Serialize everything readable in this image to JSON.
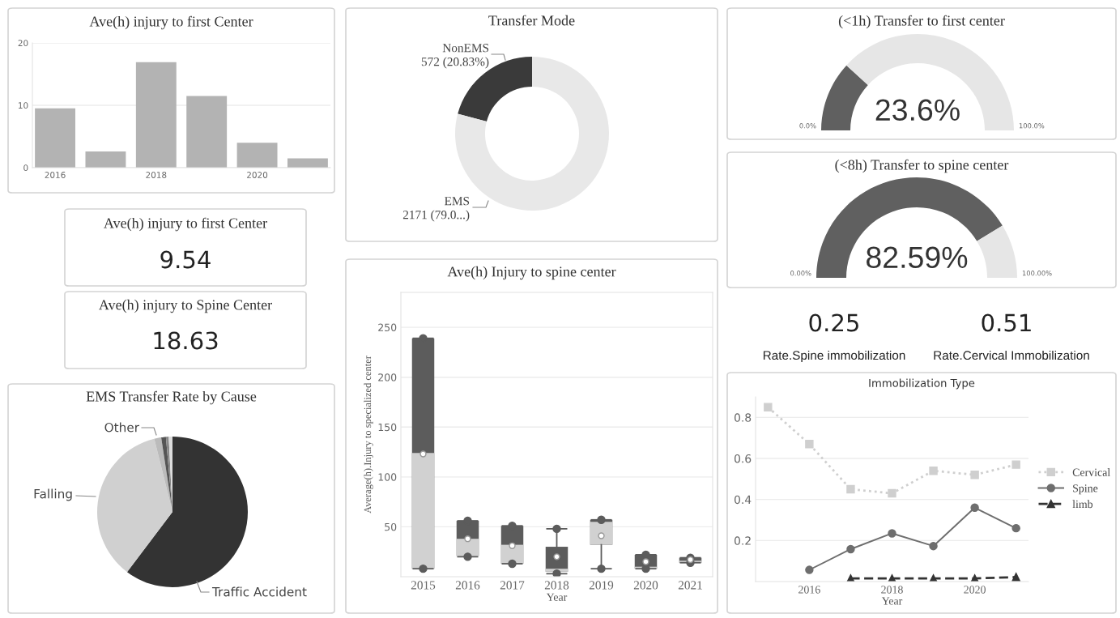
{
  "chart_data": [
    {
      "type": "bar",
      "title": "Ave(h) injury to first Center",
      "x": [
        2016,
        2017,
        2018,
        2019,
        2020,
        2021
      ],
      "values": [
        9.5,
        2.6,
        16.9,
        11.5,
        4.0,
        1.5
      ],
      "color": "#b3b3b3",
      "xlim": [
        2015.55,
        2021.45
      ],
      "xticks": [
        2016,
        2018,
        2020
      ],
      "ylim": [
        0,
        20
      ],
      "yticks": [
        0,
        10,
        20
      ],
      "grid": "y"
    },
    {
      "type": "donut",
      "title": "Transfer Mode",
      "categories": [
        "NonEMS",
        "EMS"
      ],
      "values": [
        572,
        2171
      ],
      "colors": [
        "#3a3a3a",
        "#e8e8e8"
      ],
      "value_labels": [
        "572 (20.83%)",
        "2171 (79.0...)"
      ]
    },
    {
      "type": "donut",
      "title": "(<1h) Transfer to first center",
      "categories": [
        null,
        null
      ],
      "values": [
        23.6,
        76.4
      ],
      "colors": [
        "#606060",
        "#e6e6e6"
      ],
      "annotations": [
        "23.6%",
        "0.0%",
        "100.0%"
      ]
    },
    {
      "type": "donut",
      "title": "(<8h) Transfer to spine center",
      "categories": [
        null,
        null
      ],
      "values": [
        82.59,
        17.41
      ],
      "colors": [
        "#606060",
        "#e6e6e6"
      ],
      "annotations": [
        "82.59%",
        "0.00%",
        "100.00%"
      ]
    },
    {
      "type": "other",
      "title": "Ave(h) injury to first Center",
      "annotations": [
        "9.54"
      ]
    },
    {
      "type": "other",
      "title": "Ave(h) injury to Spine Center",
      "annotations": [
        "18.63"
      ]
    },
    {
      "type": "other",
      "annotations": [
        "0.25",
        "Rate.Spine immobilization"
      ]
    },
    {
      "type": "other",
      "annotations": [
        "0.51",
        "Rate.Cervical Immobilization"
      ]
    },
    {
      "type": "pie",
      "title": "EMS Transfer Rate by Cause",
      "categories": [
        "Traffic Accident",
        "Falling",
        "Other",
        null,
        null,
        null
      ],
      "values": [
        60.3,
        35.8,
        1.5,
        1.0,
        0.6,
        0.8
      ],
      "colors": [
        "#333333",
        "#d0d0d0",
        "#bbbbbb",
        "#555555",
        "#888888",
        "#dddddd"
      ]
    },
    {
      "type": "box",
      "title": "Ave(h) Injury to spine center",
      "xlabel": "Year",
      "ylabel": "Average(h).Injury to specialized center",
      "categories": [
        "2015",
        "2016",
        "2017",
        "2018",
        "2019",
        "2020",
        "2021"
      ],
      "boxes": [
        {
          "low": 8,
          "q1": 8,
          "median": 124,
          "q3": 239,
          "high": 239,
          "mean": 123
        },
        {
          "low": 20,
          "q1": 21,
          "median": 38,
          "q3": 56,
          "high": 56,
          "mean": 38
        },
        {
          "low": 13,
          "q1": 13,
          "median": 32,
          "q3": 51,
          "high": 51,
          "mean": 31
        },
        {
          "low": 3,
          "q1": 5,
          "median": 8,
          "q3": 30,
          "high": 48,
          "mean": 20
        },
        {
          "low": 8,
          "q1": 32,
          "median": 55,
          "q3": 57,
          "high": 57,
          "mean": 41
        },
        {
          "low": 8,
          "q1": 8,
          "median": 10,
          "q3": 22,
          "high": 22,
          "mean": 15
        },
        {
          "low": 14,
          "q1": 14,
          "median": 16,
          "q3": 19,
          "high": 19,
          "mean": 17
        }
      ],
      "color": "#5c5c5c",
      "ylim": [
        0,
        285
      ],
      "yticks": [
        50,
        100,
        150,
        200,
        250
      ],
      "grid": "y"
    },
    {
      "type": "line",
      "title": "Immobilization Type",
      "xlabel": "Year",
      "x": [
        2015,
        2016,
        2017,
        2018,
        2019,
        2020,
        2021
      ],
      "series": [
        {
          "name": "Cervical",
          "color": "#cfcfcf",
          "marker": "square",
          "line_style": "dotted",
          "values": [
            0.85,
            0.67,
            0.45,
            0.43,
            0.54,
            0.52,
            0.57
          ]
        },
        {
          "name": "Spine",
          "color": "#6e6e6e",
          "marker": "circle",
          "line_style": "solid",
          "values": [
            null,
            0.057,
            0.158,
            0.235,
            0.173,
            0.36,
            0.26
          ]
        },
        {
          "name": "limb",
          "color": "#333333",
          "marker": "triangle",
          "line_style": "dashed",
          "values": [
            null,
            null,
            0.015,
            0.015,
            0.015,
            0.015,
            0.022
          ]
        }
      ],
      "xlim": [
        2014.7,
        2021.3
      ],
      "xticks": [
        2016,
        2018,
        2020
      ],
      "ylim": [
        0,
        0.9
      ],
      "yticks": [
        0.2,
        0.4,
        0.6,
        0.8
      ],
      "grid": "y",
      "legend": "right"
    }
  ]
}
